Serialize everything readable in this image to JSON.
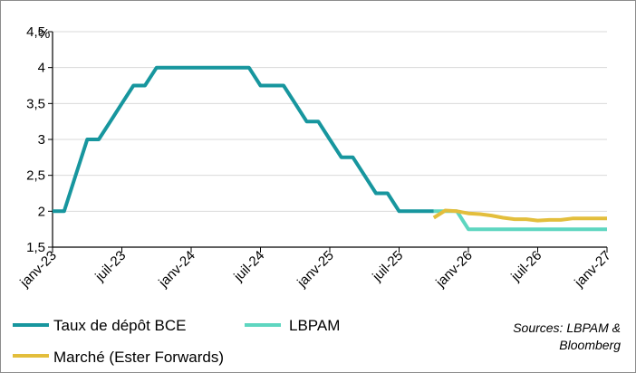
{
  "chart_data": {
    "type": "line",
    "ylabel": "%",
    "ylim": [
      1.5,
      4.5
    ],
    "y_ticks": [
      {
        "value": 1.5,
        "label": "1,5"
      },
      {
        "value": 2,
        "label": "2"
      },
      {
        "value": 2.5,
        "label": "2,5"
      },
      {
        "value": 3,
        "label": "3"
      },
      {
        "value": 3.5,
        "label": "3,5"
      },
      {
        "value": 4,
        "label": "4"
      },
      {
        "value": 4.5,
        "label": "4,5"
      }
    ],
    "xlim": [
      "2023-01",
      "2027-01"
    ],
    "x_ticks": [
      {
        "value": "2023-01",
        "label": "janv-23"
      },
      {
        "value": "2023-07",
        "label": "juil-23"
      },
      {
        "value": "2024-01",
        "label": "janv-24"
      },
      {
        "value": "2024-07",
        "label": "juil-24"
      },
      {
        "value": "2025-01",
        "label": "janv-25"
      },
      {
        "value": "2025-07",
        "label": "juil-25"
      },
      {
        "value": "2026-01",
        "label": "janv-26"
      },
      {
        "value": "2026-07",
        "label": "juil-26"
      },
      {
        "value": "2027-01",
        "label": "janv-27"
      }
    ],
    "grid": "horizontal",
    "legend_position": "bottom",
    "series": [
      {
        "name": "Taux de dépôt BCE",
        "color": "#17969e",
        "points": [
          {
            "x": "2023-01",
            "y": 2.0
          },
          {
            "x": "2023-02",
            "y": 2.0
          },
          {
            "x": "2023-03",
            "y": 2.5
          },
          {
            "x": "2023-04",
            "y": 3.0
          },
          {
            "x": "2023-05",
            "y": 3.0
          },
          {
            "x": "2023-06",
            "y": 3.25
          },
          {
            "x": "2023-07",
            "y": 3.5
          },
          {
            "x": "2023-08",
            "y": 3.75
          },
          {
            "x": "2023-09",
            "y": 3.75
          },
          {
            "x": "2023-10",
            "y": 4.0
          },
          {
            "x": "2024-06",
            "y": 4.0
          },
          {
            "x": "2024-07",
            "y": 3.75
          },
          {
            "x": "2024-09",
            "y": 3.75
          },
          {
            "x": "2024-10",
            "y": 3.5
          },
          {
            "x": "2024-11",
            "y": 3.25
          },
          {
            "x": "2024-12",
            "y": 3.25
          },
          {
            "x": "2025-01",
            "y": 3.0
          },
          {
            "x": "2025-02",
            "y": 2.75
          },
          {
            "x": "2025-03",
            "y": 2.75
          },
          {
            "x": "2025-04",
            "y": 2.5
          },
          {
            "x": "2025-05",
            "y": 2.25
          },
          {
            "x": "2025-06",
            "y": 2.25
          },
          {
            "x": "2025-07",
            "y": 2.0
          },
          {
            "x": "2025-10",
            "y": 2.0
          }
        ]
      },
      {
        "name": "LBPAM",
        "color": "#5ed6c0",
        "points": [
          {
            "x": "2025-10",
            "y": 2.0
          },
          {
            "x": "2025-12",
            "y": 2.0
          },
          {
            "x": "2026-01",
            "y": 1.75
          },
          {
            "x": "2027-01",
            "y": 1.75
          }
        ]
      },
      {
        "name": "Marché (Ester Forwards)",
        "color": "#e3be3c",
        "points": [
          {
            "x": "2025-10",
            "y": 1.91
          },
          {
            "x": "2025-11",
            "y": 2.01
          },
          {
            "x": "2025-12",
            "y": 2.0
          },
          {
            "x": "2026-01",
            "y": 1.97
          },
          {
            "x": "2026-02",
            "y": 1.96
          },
          {
            "x": "2026-03",
            "y": 1.94
          },
          {
            "x": "2026-04",
            "y": 1.91
          },
          {
            "x": "2026-05",
            "y": 1.89
          },
          {
            "x": "2026-06",
            "y": 1.89
          },
          {
            "x": "2026-07",
            "y": 1.87
          },
          {
            "x": "2026-08",
            "y": 1.88
          },
          {
            "x": "2026-09",
            "y": 1.88
          },
          {
            "x": "2026-10",
            "y": 1.9
          },
          {
            "x": "2027-01",
            "y": 1.9
          }
        ]
      }
    ]
  },
  "source": {
    "line1": "Sources: LBPAM &",
    "line2": "Bloomberg"
  }
}
